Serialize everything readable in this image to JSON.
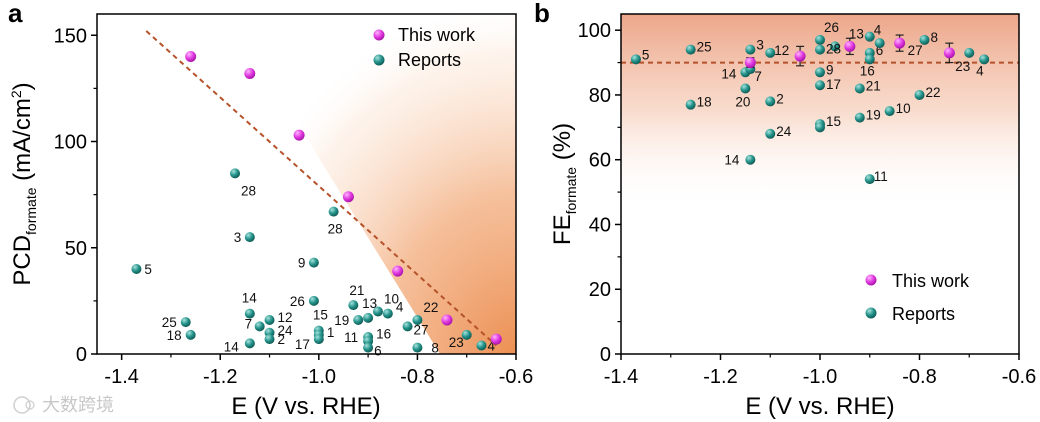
{
  "watermark": "大数跨境",
  "chart_data": [
    {
      "panel": "a",
      "type": "scatter",
      "xlabel": "E (V vs. RHE)",
      "ylabel": "PCD",
      "ylabel_sub": "formate",
      "ylabel_unit": "(mA/cm",
      "ylabel_unit_sup": "2",
      "ylabel_unit_end": ")",
      "xlim": [
        -1.45,
        -0.6
      ],
      "ylim": [
        0,
        160
      ],
      "xticks": [
        -1.4,
        -1.2,
        -1.0,
        -0.8,
        -0.6
      ],
      "xtick_labels": [
        "-1.4",
        "-1.2",
        "-1.0",
        "-0.8",
        "-0.6"
      ],
      "yticks": [
        0,
        50,
        100,
        150
      ],
      "ytick_labels": [
        "0",
        "50",
        "100",
        "150"
      ],
      "legend": [
        "This work",
        "Reports"
      ],
      "trend_line": [
        [
          -1.35,
          152
        ],
        [
          -0.64,
          4
        ]
      ],
      "series": [
        {
          "name": "This work",
          "color": "#d81bd6",
          "points": [
            [
              -1.26,
              140
            ],
            [
              -1.14,
              132
            ],
            [
              -1.04,
              103
            ],
            [
              -0.94,
              74
            ],
            [
              -0.84,
              39
            ],
            [
              -0.74,
              16
            ],
            [
              -0.64,
              7
            ]
          ]
        },
        {
          "name": "Reports",
          "color": "#1f8a80",
          "points": [
            {
              "x": -1.37,
              "y": 40,
              "label": "5",
              "dx": 8,
              "dy": 5
            },
            {
              "x": -1.17,
              "y": 85,
              "label": "28",
              "dx": 6,
              "dy": 22
            },
            {
              "x": -1.14,
              "y": 55,
              "label": "3",
              "dx": -16,
              "dy": 5
            },
            {
              "x": -0.97,
              "y": 67,
              "label": "28",
              "dx": -6,
              "dy": 22
            },
            {
              "x": -1.01,
              "y": 43,
              "label": "9",
              "dx": -16,
              "dy": 5
            },
            {
              "x": -1.01,
              "y": 25,
              "label": "26",
              "dx": -24,
              "dy": 5
            },
            {
              "x": -1.14,
              "y": 19,
              "label": "14",
              "dx": -8,
              "dy": -11
            },
            {
              "x": -1.12,
              "y": 13,
              "label": "7",
              "dx": -15,
              "dy": 2
            },
            {
              "x": -1.27,
              "y": 15,
              "label": "25",
              "dx": -24,
              "dy": 5
            },
            {
              "x": -1.26,
              "y": 9,
              "label": "18",
              "dx": -24,
              "dy": 5
            },
            {
              "x": -1.1,
              "y": 16,
              "label": "12",
              "dx": 8,
              "dy": 2
            },
            {
              "x": -1.1,
              "y": 10,
              "label": "24",
              "dx": 8,
              "dy": 2
            },
            {
              "x": -1.1,
              "y": 7,
              "label": "2",
              "dx": 8,
              "dy": 5
            },
            {
              "x": -1.14,
              "y": 5,
              "label": "14",
              "dx": -26,
              "dy": 8
            },
            {
              "x": -1.0,
              "y": 11,
              "label": "15",
              "dx": -6,
              "dy": -11
            },
            {
              "x": -1.0,
              "y": 9,
              "label": "1",
              "dx": 8,
              "dy": 2
            },
            {
              "x": -1.0,
              "y": 7,
              "label": "17",
              "dx": -24,
              "dy": 10
            },
            {
              "x": -0.93,
              "y": 23,
              "label": "21",
              "dx": -4,
              "dy": -10
            },
            {
              "x": -0.92,
              "y": 16,
              "label": "19",
              "dx": -24,
              "dy": 5
            },
            {
              "x": -0.9,
              "y": 17,
              "label": "13",
              "dx": -6,
              "dy": -10
            },
            {
              "x": -0.88,
              "y": 20,
              "label": "10",
              "dx": 6,
              "dy": -8
            },
            {
              "x": -0.86,
              "y": 19,
              "label": "4",
              "dx": 8,
              "dy": -2
            },
            {
              "x": -0.82,
              "y": 13,
              "label": "27",
              "dx": 6,
              "dy": 8
            },
            {
              "x": -0.8,
              "y": 16,
              "label": "22",
              "dx": 6,
              "dy": -8
            },
            {
              "x": -0.9,
              "y": 8,
              "label": "11",
              "dx": -24,
              "dy": 5
            },
            {
              "x": -0.9,
              "y": 6,
              "label": "16",
              "dx": 8,
              "dy": -3
            },
            {
              "x": -0.9,
              "y": 3,
              "label": "6",
              "dx": 6,
              "dy": 8
            },
            {
              "x": -0.8,
              "y": 3,
              "label": "8",
              "dx": 14,
              "dy": 5
            },
            {
              "x": -0.7,
              "y": 9,
              "label": "23",
              "dx": -18,
              "dy": 12
            },
            {
              "x": -0.67,
              "y": 4,
              "label": "4",
              "dx": 6,
              "dy": 5
            }
          ]
        }
      ]
    },
    {
      "panel": "b",
      "type": "scatter",
      "xlabel": "E (V vs. RHE)",
      "ylabel": "FE",
      "ylabel_sub": "formate",
      "ylabel_unit": "(%)",
      "xlim": [
        -1.4,
        -0.6
      ],
      "ylim": [
        0,
        105
      ],
      "xticks": [
        -1.4,
        -1.2,
        -1.0,
        -0.8,
        -0.6
      ],
      "xtick_labels": [
        "-1.4",
        "-1.2",
        "-1.0",
        "-0.8",
        "-0.6"
      ],
      "yticks": [
        0,
        20,
        40,
        60,
        80,
        100
      ],
      "ytick_labels": [
        "0",
        "20",
        "40",
        "60",
        "80",
        "100"
      ],
      "reference_line": 90,
      "legend": [
        "This work",
        "Reports"
      ],
      "series": [
        {
          "name": "This work",
          "color": "#d81bd6",
          "points": [
            {
              "x": -1.14,
              "y": 90,
              "err": 1.5
            },
            {
              "x": -1.04,
              "y": 92,
              "err": 3
            },
            {
              "x": -0.94,
              "y": 95,
              "err": 2.5
            },
            {
              "x": -0.84,
              "y": 96,
              "err": 2.5
            },
            {
              "x": -0.74,
              "y": 93,
              "err": 3
            }
          ]
        },
        {
          "name": "Reports",
          "color": "#1f8a80",
          "points": [
            {
              "x": -1.37,
              "y": 91,
              "label": "5",
              "dx": 6,
              "dy": 0
            },
            {
              "x": -1.26,
              "y": 94,
              "label": "25",
              "dx": 6,
              "dy": 2
            },
            {
              "x": -1.14,
              "y": 94,
              "label": "3",
              "dx": 6,
              "dy": 0
            },
            {
              "x": -1.1,
              "y": 93,
              "label": "12",
              "dx": 4,
              "dy": 2
            },
            {
              "x": -1.15,
              "y": 87,
              "label": "14",
              "dx": -24,
              "dy": 6
            },
            {
              "x": -1.14,
              "y": 88,
              "label": "7",
              "dx": 4,
              "dy": 12
            },
            {
              "x": -1.15,
              "y": 82,
              "label": "20",
              "dx": -10,
              "dy": 18
            },
            {
              "x": -1.26,
              "y": 77,
              "label": "18",
              "dx": 6,
              "dy": 2
            },
            {
              "x": -1.1,
              "y": 78,
              "label": "2",
              "dx": 6,
              "dy": 2
            },
            {
              "x": -1.1,
              "y": 68,
              "label": "24",
              "dx": 6,
              "dy": 2
            },
            {
              "x": -1.14,
              "y": 60,
              "label": "14",
              "dx": -26,
              "dy": 5
            },
            {
              "x": -1.0,
              "y": 97,
              "label": "26",
              "dx": 4,
              "dy": -8
            },
            {
              "x": -0.97,
              "y": 95,
              "label": "13",
              "dx": 14,
              "dy": -8
            },
            {
              "x": -1.0,
              "y": 94,
              "label": "28",
              "dx": 6,
              "dy": 4
            },
            {
              "x": -1.0,
              "y": 87,
              "label": "9",
              "dx": 6,
              "dy": 2
            },
            {
              "x": -1.0,
              "y": 83,
              "label": "17",
              "dx": 6,
              "dy": 4
            },
            {
              "x": -1.0,
              "y": 71,
              "label": "15",
              "dx": 6,
              "dy": 2
            },
            {
              "x": -1.0,
              "y": 70,
              "label": "",
              "dx": 0,
              "dy": 0
            },
            {
              "x": -0.92,
              "y": 82,
              "label": "21",
              "dx": 6,
              "dy": 2
            },
            {
              "x": -0.92,
              "y": 73,
              "label": "19",
              "dx": 6,
              "dy": 2
            },
            {
              "x": -0.9,
              "y": 98,
              "label": "4",
              "dx": 4,
              "dy": -2
            },
            {
              "x": -0.9,
              "y": 93,
              "label": "6",
              "dx": 6,
              "dy": 2
            },
            {
              "x": -0.9,
              "y": 91,
              "label": "16",
              "dx": -10,
              "dy": 16
            },
            {
              "x": -0.88,
              "y": 96,
              "label": "",
              "dx": 0,
              "dy": 0
            },
            {
              "x": -0.86,
              "y": 75,
              "label": "10",
              "dx": 6,
              "dy": 2
            },
            {
              "x": -0.9,
              "y": 54,
              "label": "11",
              "dx": 4,
              "dy": 2
            },
            {
              "x": -0.79,
              "y": 97,
              "label": "8",
              "dx": 6,
              "dy": 2
            },
            {
              "x": -0.8,
              "y": 80,
              "label": "22",
              "dx": 6,
              "dy": 2
            },
            {
              "x": -0.7,
              "y": 93,
              "label": "23",
              "dx": -14,
              "dy": 18
            },
            {
              "x": -0.67,
              "y": 91,
              "label": "4",
              "dx": -8,
              "dy": 16
            },
            {
              "x": -0.84,
              "y": 96,
              "label": "27",
              "dx": 8,
              "dy": 12
            }
          ]
        }
      ]
    }
  ]
}
